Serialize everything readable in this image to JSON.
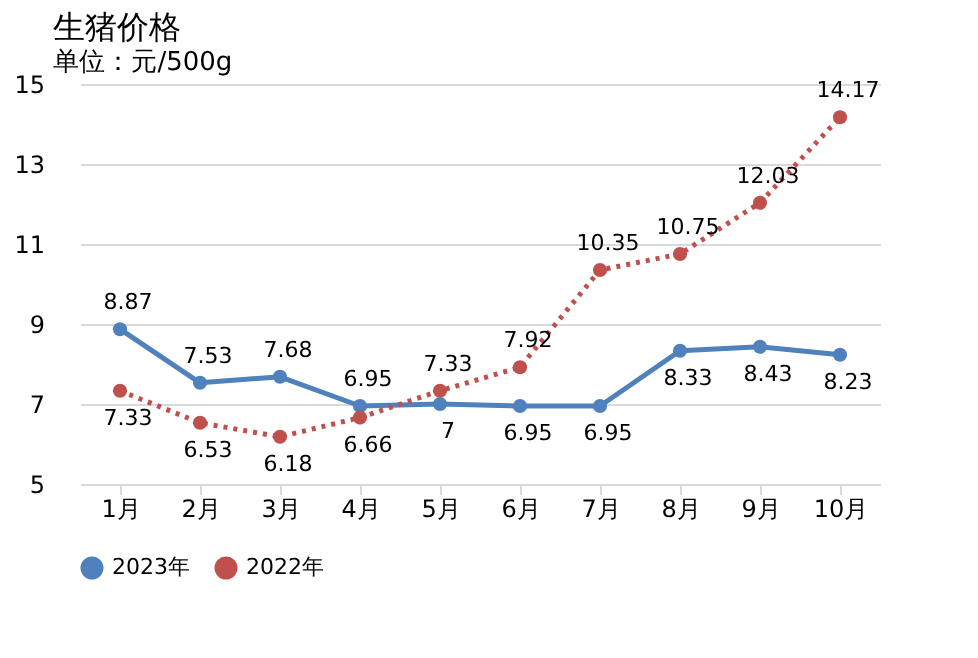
{
  "chart_data": {
    "type": "line",
    "title": "生猪价格",
    "annotations": [
      "单位：元/500g"
    ],
    "categories": [
      "1月",
      "2月",
      "3月",
      "4月",
      "5月",
      "6月",
      "7月",
      "8月",
      "9月",
      "10月"
    ],
    "series": [
      {
        "name": "2023年",
        "color": "#4f81bd",
        "line_style": "solid",
        "values": [
          8.87,
          7.53,
          7.68,
          6.95,
          7,
          6.95,
          6.95,
          8.33,
          8.43,
          8.23
        ]
      },
      {
        "name": "2022年",
        "color": "#c0504d",
        "line_style": "dotted",
        "values": [
          7.33,
          6.53,
          6.18,
          6.66,
          7.33,
          7.92,
          10.35,
          10.75,
          12.03,
          14.17
        ]
      }
    ],
    "ylim": [
      5,
      15
    ],
    "yticks": [
      5,
      7,
      9,
      11,
      13,
      15
    ],
    "grid": "y",
    "legend": "bottom",
    "marker": "circle",
    "data_labels": true
  }
}
